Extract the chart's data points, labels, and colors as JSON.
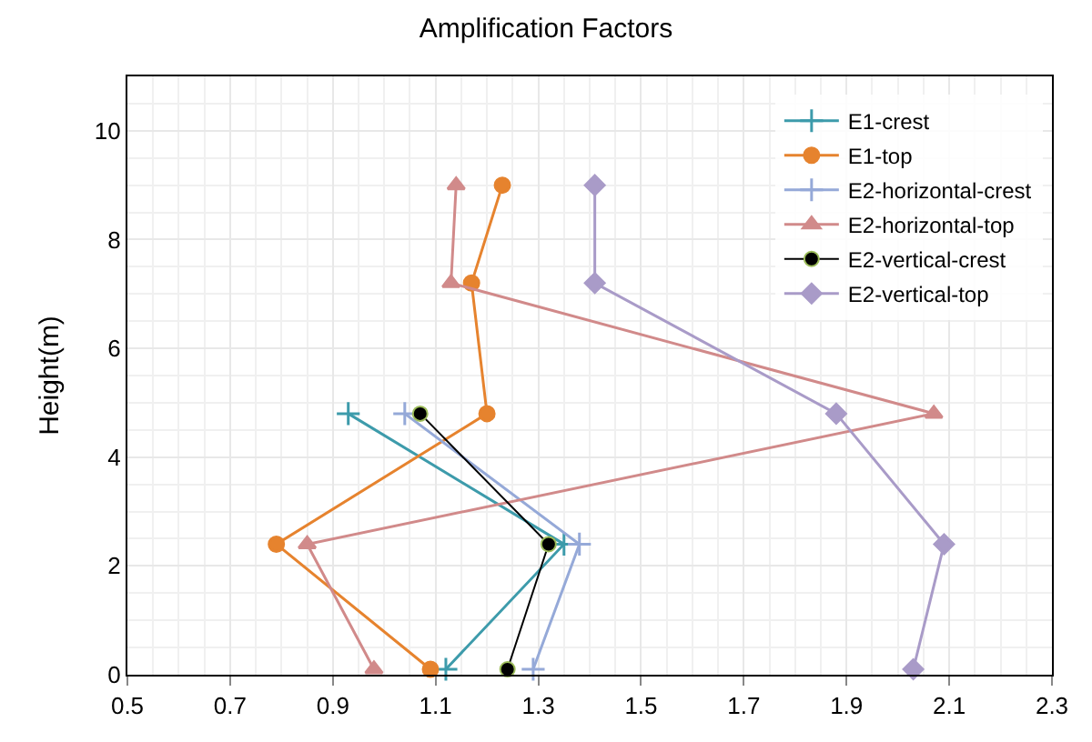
{
  "chart_data": {
    "type": "line",
    "title": "Amplification Factors",
    "ylabel": "Height(m)",
    "xlim": [
      0.5,
      2.3
    ],
    "xticks": [
      0.5,
      0.7,
      0.9,
      1.1,
      1.3,
      1.5,
      1.7,
      1.9,
      2.1,
      2.3
    ],
    "ylim": [
      0,
      11
    ],
    "yticks": [
      0,
      2,
      4,
      6,
      8,
      10
    ],
    "grid": true,
    "legend": "top right",
    "series": [
      {
        "name": "E1-crest",
        "color": "#3d9bab",
        "marker": "cross",
        "x": [
          0.93,
          1.35,
          1.12
        ],
        "values": [
          4.8,
          2.4,
          0.1
        ]
      },
      {
        "name": "E1-top",
        "color": "#e6832e",
        "marker": "circle",
        "x": [
          1.23,
          1.17,
          1.2,
          0.79,
          1.09
        ],
        "values": [
          9.0,
          7.2,
          4.8,
          2.4,
          0.1
        ]
      },
      {
        "name": "E2-horizontal-crest",
        "color": "#95a9d8",
        "marker": "cross",
        "x": [
          1.04,
          1.38,
          1.29
        ],
        "values": [
          4.8,
          2.4,
          0.1
        ]
      },
      {
        "name": "E2-horizontal-top",
        "color": "#d18a8a",
        "marker": "triangle",
        "x": [
          1.14,
          1.13,
          2.07,
          0.85,
          0.98
        ],
        "values": [
          9.0,
          7.2,
          4.8,
          2.4,
          0.1
        ]
      },
      {
        "name": "E2-vertical-crest",
        "color": "#000000",
        "marker": "circle",
        "x": [
          1.07,
          1.32,
          1.24
        ],
        "values": [
          4.8,
          2.4,
          0.1
        ]
      },
      {
        "name": "E2-vertical-top",
        "color": "#a99bc8",
        "marker": "diamond",
        "x": [
          1.41,
          1.41,
          1.88,
          2.09,
          2.03
        ],
        "values": [
          9.0,
          7.2,
          4.8,
          2.4,
          0.1
        ]
      }
    ]
  }
}
